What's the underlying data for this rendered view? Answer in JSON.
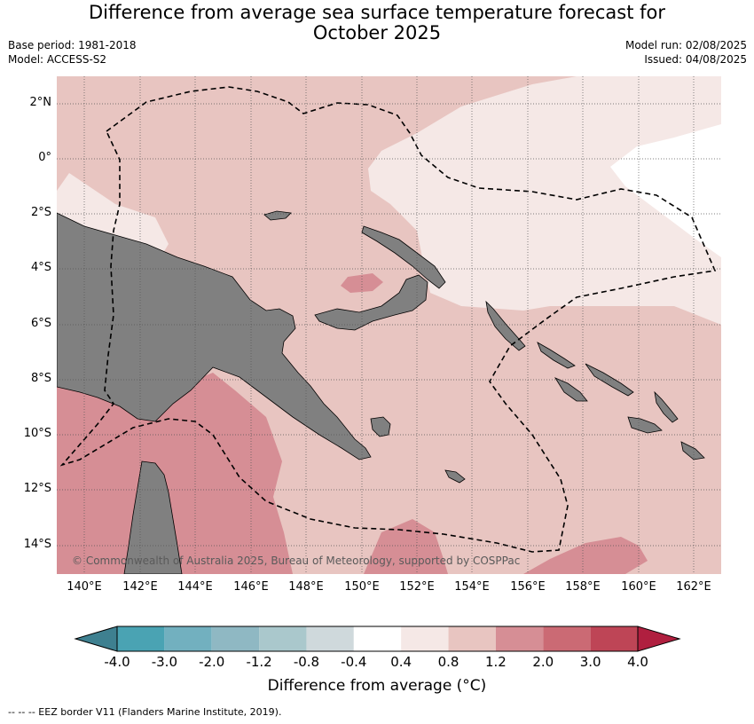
{
  "header": {
    "title_line1": "Difference from average sea surface temperature forecast for",
    "title_line2": "October 2025",
    "base_period": "Base period: 1981-2018",
    "model": "Model: ACCESS-S2",
    "model_run": "Model run: 02/08/2025",
    "issued": "Issued: 04/08/2025"
  },
  "map": {
    "lat_labels": [
      "2°N",
      "0°",
      "2°S",
      "4°S",
      "6°S",
      "8°S",
      "10°S",
      "12°S",
      "14°S"
    ],
    "lon_labels": [
      "140°E",
      "142°E",
      "144°E",
      "146°E",
      "148°E",
      "150°E",
      "152°E",
      "154°E",
      "156°E",
      "158°E",
      "160°E",
      "162°E"
    ],
    "credit": "© Commonwealth of Australia 2025, Bureau of Meteorology, supported by COSPPac",
    "colors": {
      "land": "#808080",
      "anomaly_0_4_to_0_8": "#f5e8e6",
      "anomaly_0_8_to_1_2": "#e8c5c1",
      "anomaly_1_2_to_2_0": "#d68e95",
      "anomaly_2_0_to_3_0": "#cb6a74"
    }
  },
  "colorbar": {
    "tick_labels": [
      "-4.0",
      "-3.0",
      "-2.0",
      "-1.2",
      "-0.8",
      "-0.4",
      "0.4",
      "0.8",
      "1.2",
      "2.0",
      "3.0",
      "4.0"
    ],
    "colors": [
      "#4aa3b3",
      "#72b0bf",
      "#8fb8c3",
      "#aac8cc",
      "#cfd9dc",
      "#ffffff",
      "#f5e8e6",
      "#e8c5c1",
      "#d68e95",
      "#cb6a74",
      "#be4556"
    ],
    "under_color": "#3e8090",
    "over_color": "#b01f3f",
    "title": "Difference from average (°C)"
  },
  "legend": {
    "eez_text": "--  --  -- EEZ border V11 (Flanders Marine Institute, 2019)."
  }
}
